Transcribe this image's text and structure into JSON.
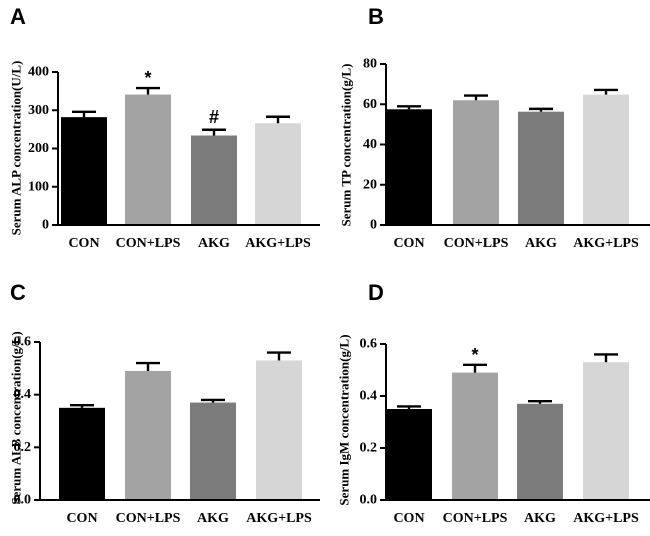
{
  "chart_data": [
    {
      "panel": "A",
      "type": "bar",
      "ylabel": "Serum ALP concentration(U/L)",
      "categories": [
        "CON",
        "CON+LPS",
        "AKG",
        "AKG+LPS"
      ],
      "values": [
        282,
        341,
        234,
        266
      ],
      "errors": [
        14,
        17,
        15,
        17
      ],
      "annotations": [
        "",
        "*",
        "#",
        ""
      ],
      "ylim": [
        0,
        400
      ],
      "yticks": [
        0,
        100,
        200,
        300,
        400
      ],
      "tick_labels": [
        "0",
        "100",
        "200",
        "300",
        "400"
      ],
      "colors": [
        "#000000",
        "#a3a3a3",
        "#7b7b7b",
        "#d6d6d6"
      ]
    },
    {
      "panel": "B",
      "type": "bar",
      "ylabel": "Serum TP concentration(g/L)",
      "categories": [
        "CON",
        "CON+LPS",
        "AKG",
        "AKG+LPS"
      ],
      "values": [
        57.5,
        62,
        56.3,
        64.8
      ],
      "errors": [
        1.5,
        2.3,
        1.4,
        2.3
      ],
      "annotations": [
        "",
        "",
        "",
        ""
      ],
      "ylim": [
        0,
        80
      ],
      "yticks": [
        0,
        20,
        40,
        60,
        80
      ],
      "tick_labels": [
        "0",
        "20",
        "40",
        "60",
        "80"
      ],
      "colors": [
        "#000000",
        "#a3a3a3",
        "#7b7b7b",
        "#d6d6d6"
      ]
    },
    {
      "panel": "C",
      "type": "bar",
      "ylabel": "Serum ALB concentration(g/L)",
      "categories": [
        "CON",
        "CON+LPS",
        "AKG",
        "AKG+LPS"
      ],
      "values": [
        0.35,
        0.49,
        0.37,
        0.53
      ],
      "errors": [
        0.01,
        0.03,
        0.01,
        0.03
      ],
      "annotations": [
        "",
        "",
        "",
        ""
      ],
      "ylim": [
        0,
        0.6
      ],
      "yticks": [
        0,
        0.2,
        0.4,
        0.6
      ],
      "tick_labels": [
        "0.0",
        "0.2",
        "0.4",
        "0.6"
      ],
      "colors": [
        "#000000",
        "#a3a3a3",
        "#7b7b7b",
        "#d6d6d6"
      ]
    },
    {
      "panel": "D",
      "type": "bar",
      "ylabel": "Serum IgM concentration(g/L)",
      "categories": [
        "CON",
        "CON+LPS",
        "AKG",
        "AKG+LPS"
      ],
      "values": [
        0.35,
        0.49,
        0.37,
        0.53
      ],
      "errors": [
        0.01,
        0.03,
        0.01,
        0.03
      ],
      "annotations": [
        "",
        "*",
        "",
        ""
      ],
      "ylim": [
        0,
        0.6
      ],
      "yticks": [
        0,
        0.2,
        0.4,
        0.6
      ],
      "tick_labels": [
        "0.0",
        "0.2",
        "0.4",
        "0.6"
      ],
      "colors": [
        "#000000",
        "#a3a3a3",
        "#7b7b7b",
        "#d6d6d6"
      ]
    }
  ]
}
